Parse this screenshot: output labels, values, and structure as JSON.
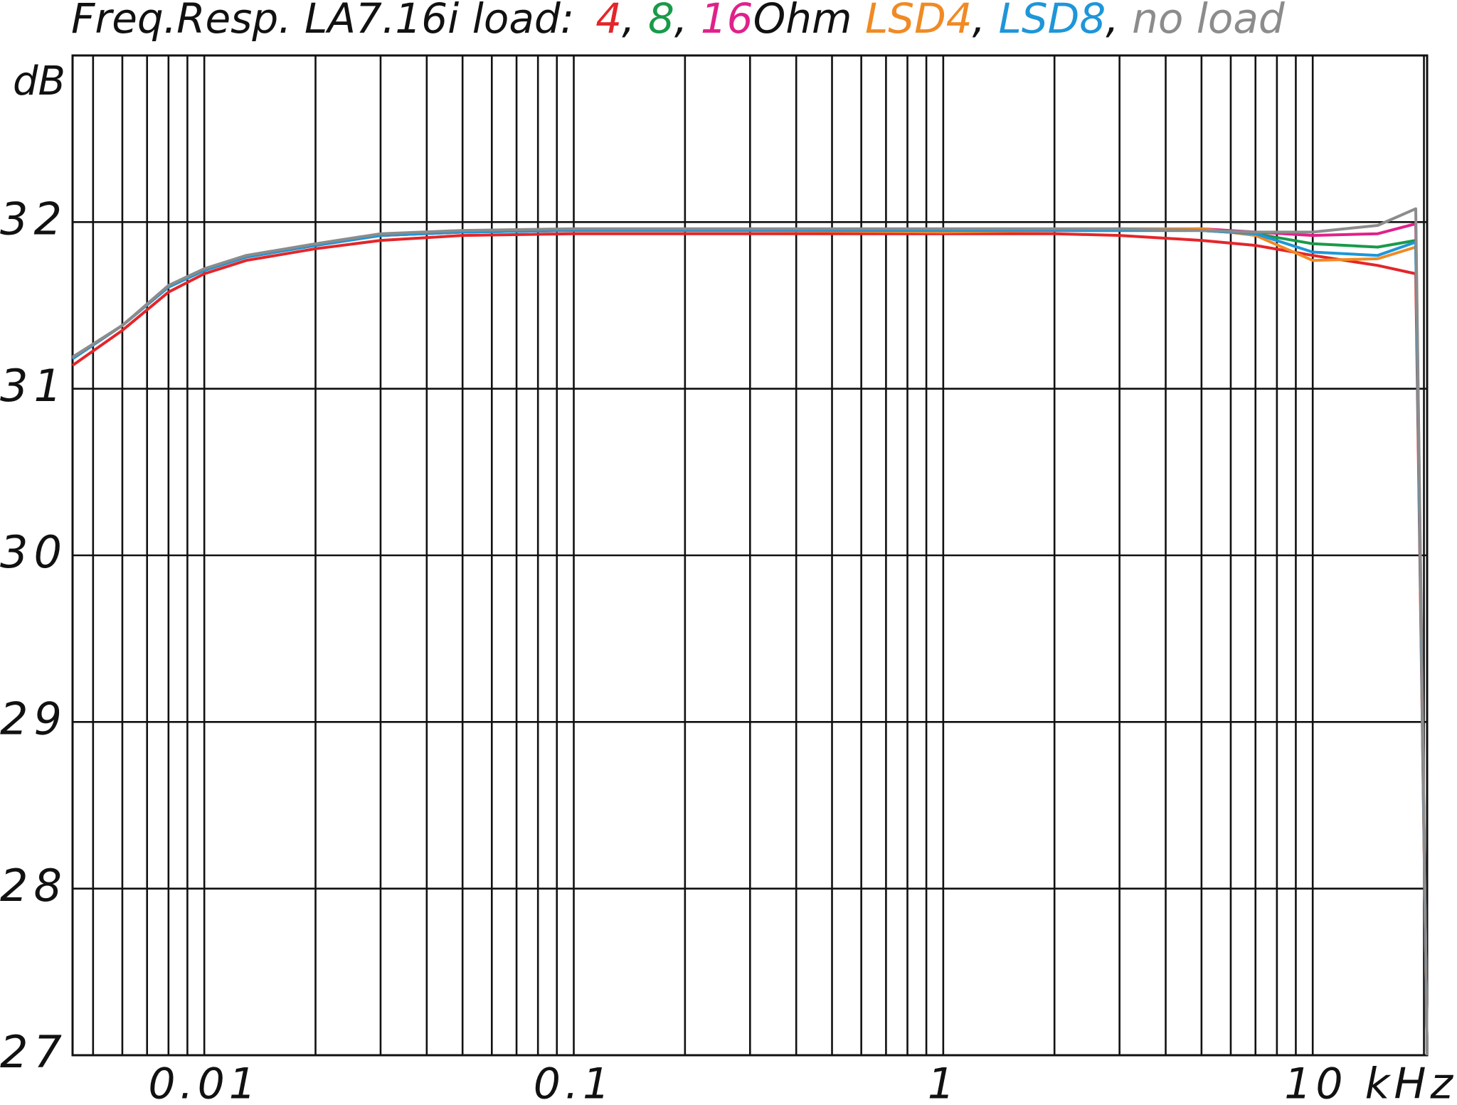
{
  "chart_data": {
    "type": "line",
    "title": "Freq.Resp. LA7.16i load:",
    "legend_separators": [
      ", ",
      ", ",
      "Ohm ",
      ", ",
      ", "
    ],
    "y_label": "dB",
    "x_scale": "log",
    "xlim": [
      0.0044,
      20.4
    ],
    "ylim": [
      27,
      33
    ],
    "yticks": [
      27,
      28,
      29,
      30,
      31,
      32
    ],
    "xticks": [
      0.01,
      0.1,
      1,
      {
        "value": 10,
        "label": "10 kHz"
      }
    ],
    "x_minor_grid": [
      0.005,
      0.006,
      0.007,
      0.008,
      0.009,
      0.02,
      0.03,
      0.04,
      0.05,
      0.06,
      0.07,
      0.08,
      0.09,
      0.2,
      0.3,
      0.4,
      0.5,
      0.6,
      0.7,
      0.8,
      0.9,
      2,
      3,
      4,
      5,
      6,
      7,
      8,
      9,
      20
    ],
    "grid": true,
    "x": [
      0.0044,
      0.006,
      0.008,
      0.01,
      0.013,
      0.02,
      0.03,
      0.05,
      0.1,
      0.3,
      1,
      2,
      3,
      5,
      7,
      10,
      15,
      19,
      20.4
    ],
    "series": [
      {
        "name": "4",
        "color": "#e3262a",
        "values": [
          31.14,
          31.35,
          31.58,
          31.69,
          31.77,
          31.84,
          31.89,
          31.92,
          31.93,
          31.93,
          31.93,
          31.93,
          31.92,
          31.89,
          31.86,
          31.8,
          31.74,
          31.69,
          27
        ]
      },
      {
        "name": "8",
        "color": "#1a9a4a",
        "values": [
          31.18,
          31.38,
          31.61,
          31.71,
          31.79,
          31.86,
          31.92,
          31.94,
          31.95,
          31.95,
          31.95,
          31.95,
          31.95,
          31.95,
          31.93,
          31.87,
          31.85,
          31.89,
          27
        ]
      },
      {
        "name": "16",
        "color": "#e0218a",
        "values": [
          31.18,
          31.38,
          31.61,
          31.71,
          31.79,
          31.86,
          31.92,
          31.94,
          31.95,
          31.95,
          31.95,
          31.95,
          31.95,
          31.96,
          31.94,
          31.92,
          31.93,
          31.99,
          27
        ]
      },
      {
        "name": "LSD4",
        "color": "#f08a24",
        "values": [
          31.18,
          31.38,
          31.61,
          31.71,
          31.79,
          31.86,
          31.92,
          31.94,
          31.95,
          31.95,
          31.94,
          31.95,
          31.96,
          31.96,
          31.92,
          31.77,
          31.78,
          31.85,
          27
        ]
      },
      {
        "name": "LSD8",
        "color": "#1e96d8",
        "values": [
          31.18,
          31.38,
          31.61,
          31.71,
          31.79,
          31.86,
          31.92,
          31.94,
          31.95,
          31.95,
          31.95,
          31.95,
          31.95,
          31.95,
          31.93,
          31.82,
          31.8,
          31.88,
          27
        ]
      },
      {
        "name": "no load",
        "color": "#8c8c8c",
        "values": [
          31.19,
          31.38,
          31.62,
          31.72,
          31.8,
          31.87,
          31.93,
          31.95,
          31.96,
          31.96,
          31.96,
          31.96,
          31.96,
          31.95,
          31.94,
          31.94,
          31.98,
          32.08,
          27
        ]
      }
    ]
  }
}
